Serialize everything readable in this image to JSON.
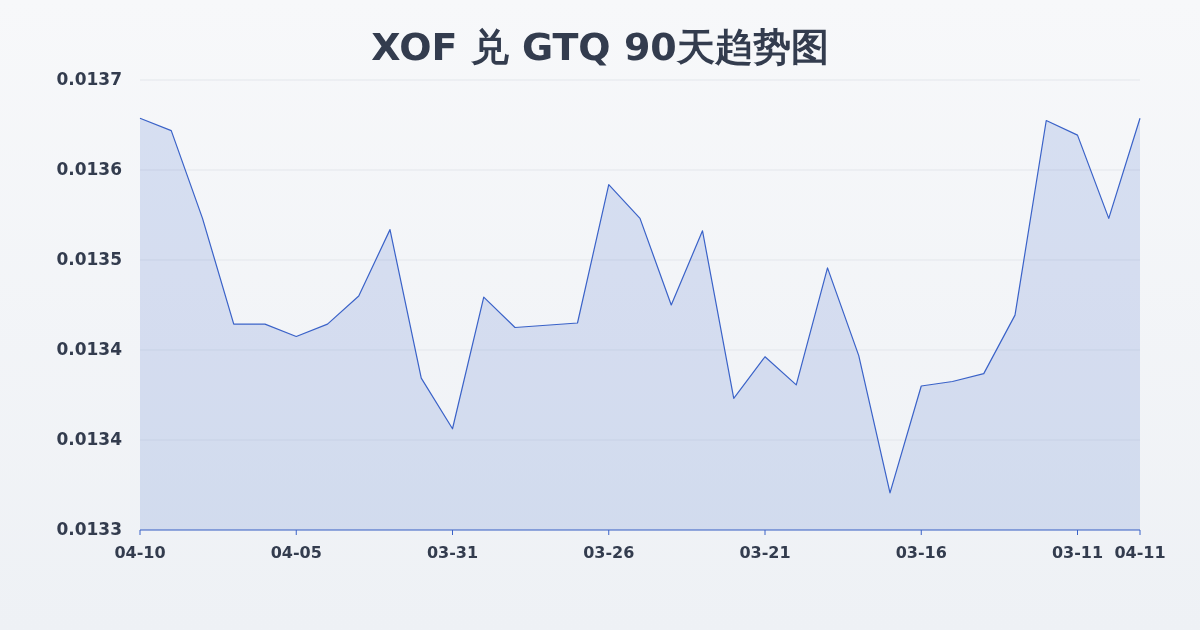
{
  "chart_data": {
    "type": "area",
    "title": "XOF 兑 GTQ 90天趋势图",
    "categories": [
      "04-10",
      null,
      null,
      null,
      null,
      "04-05",
      null,
      null,
      null,
      null,
      "03-31",
      null,
      null,
      null,
      null,
      "03-26",
      null,
      null,
      null,
      null,
      "03-21",
      null,
      null,
      null,
      null,
      "03-16",
      null,
      null,
      null,
      null,
      "03-11",
      null,
      "04-11"
    ],
    "values": [
      0.013646,
      0.013635,
      0.013557,
      0.013463,
      0.013463,
      0.013452,
      0.013463,
      0.013488,
      0.013547,
      0.013415,
      0.01337,
      0.013487,
      0.01346,
      0.013462,
      0.013464,
      0.013587,
      0.013557,
      0.01348,
      0.013546,
      0.013397,
      0.013434,
      0.013409,
      0.013513,
      0.013435,
      0.013313,
      0.013408,
      0.013412,
      0.013419,
      0.013471,
      0.013644,
      0.013631,
      0.013557,
      0.013646
    ],
    "color": "#3a62c8",
    "ylim": [
      0.01328,
      0.01368
    ],
    "yticks": [
      {
        "value": 0.01328,
        "label": "0.0133"
      },
      {
        "value": 0.01336,
        "label": "0.0134"
      },
      {
        "value": 0.01344,
        "label": "0.0134"
      },
      {
        "value": 0.01352,
        "label": "0.0135"
      },
      {
        "value": 0.0136,
        "label": "0.0136"
      },
      {
        "value": 0.01368,
        "label": "0.0137"
      }
    ],
    "grid": "y"
  }
}
